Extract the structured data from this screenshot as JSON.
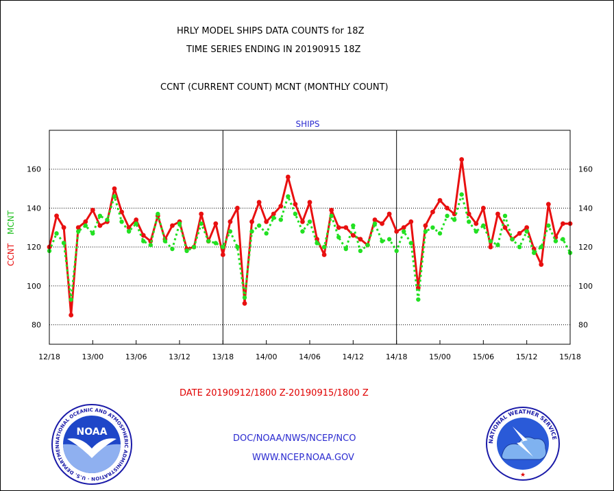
{
  "titles": {
    "line1": "HRLY MODEL SHIPS DATA COUNTS for 18Z",
    "line2": "TIME SERIES ENDING IN 20190915 18Z",
    "line3": "CCNT (CURRENT COUNT) MCNT (MONTHLY COUNT)"
  },
  "footer": {
    "date_range": "DATE 20190912/1800 Z-20190915/1800 Z",
    "org_path": "DOC/NOAA/NWS/NCEP/NCO",
    "website": "WWW.NCEP.NOAA.GOV"
  },
  "logos": {
    "noaa": {
      "label": "NOAA",
      "ring_text": "NATIONAL OCEANIC AND ATMOSPHERIC ADMINISTRATION · U.S. DEPARTMENT OF COMMERCE"
    },
    "nws": {
      "ring_text": "NATIONAL WEATHER SERVICE"
    }
  },
  "colors": {
    "ccnt": "#e81010",
    "mcnt": "#22e022",
    "title": "#000000",
    "subtitle": "#2a2ad0",
    "date": "#e00000"
  },
  "chart_data": {
    "type": "line",
    "title": "SHIPS",
    "ylabel_ccnt": "CCNT",
    "ylabel_mcnt": "MCNT",
    "ylim": [
      70,
      180
    ],
    "yticks": [
      80,
      100,
      120,
      140,
      160
    ],
    "x_ticks": [
      "12/18",
      "13/00",
      "13/06",
      "13/12",
      "13/18",
      "14/00",
      "14/06",
      "14/12",
      "14/18",
      "15/00",
      "15/06",
      "15/12",
      "15/18"
    ],
    "x_hours": [
      0,
      6,
      12,
      18,
      24,
      30,
      36,
      42,
      48,
      54,
      60,
      66,
      72
    ],
    "day_dividers_hours": [
      24,
      48
    ],
    "grid": "horizontal-dotted",
    "series": [
      {
        "name": "CCNT",
        "style": "solid",
        "values": [
          [
            0,
            120
          ],
          [
            1,
            136
          ],
          [
            2,
            130
          ],
          [
            3,
            85
          ],
          [
            4,
            130
          ],
          [
            5,
            133
          ],
          [
            6,
            139
          ],
          [
            7,
            131
          ],
          [
            8,
            133
          ],
          [
            9,
            150
          ],
          [
            10,
            138
          ],
          [
            11,
            130
          ],
          [
            12,
            134
          ],
          [
            13,
            126
          ],
          [
            14,
            123
          ],
          [
            15,
            136
          ],
          [
            16,
            124
          ],
          [
            17,
            131
          ],
          [
            18,
            133
          ],
          [
            19,
            119
          ],
          [
            20,
            120
          ],
          [
            21,
            137
          ],
          [
            22,
            123
          ],
          [
            23,
            132
          ],
          [
            24,
            116
          ],
          [
            25,
            133
          ],
          [
            26,
            140
          ],
          [
            27,
            91
          ],
          [
            28,
            133
          ],
          [
            29,
            143
          ],
          [
            30,
            133
          ],
          [
            31,
            137
          ],
          [
            32,
            141
          ],
          [
            33,
            156
          ],
          [
            34,
            142
          ],
          [
            35,
            133
          ],
          [
            36,
            143
          ],
          [
            37,
            124
          ],
          [
            38,
            116
          ],
          [
            39,
            139
          ],
          [
            40,
            130
          ],
          [
            41,
            130
          ],
          [
            42,
            126
          ],
          [
            43,
            124
          ],
          [
            44,
            121
          ],
          [
            45,
            134
          ],
          [
            46,
            132
          ],
          [
            47,
            137
          ],
          [
            48,
            128
          ],
          [
            49,
            130
          ],
          [
            50,
            133
          ],
          [
            51,
            99
          ],
          [
            52,
            131
          ],
          [
            53,
            138
          ],
          [
            54,
            144
          ],
          [
            55,
            140
          ],
          [
            56,
            137
          ],
          [
            57,
            165
          ],
          [
            58,
            137
          ],
          [
            59,
            132
          ],
          [
            60,
            140
          ],
          [
            61,
            120
          ],
          [
            62,
            137
          ],
          [
            63,
            130
          ],
          [
            64,
            124
          ],
          [
            65,
            127
          ],
          [
            66,
            130
          ],
          [
            67,
            119
          ],
          [
            68,
            111
          ],
          [
            69,
            142
          ],
          [
            70,
            125
          ],
          [
            71,
            132
          ],
          [
            72,
            132
          ]
        ]
      },
      {
        "name": "MCNT",
        "style": "dotted",
        "values": [
          [
            0,
            118
          ],
          [
            1,
            127
          ],
          [
            2,
            122
          ],
          [
            3,
            93
          ],
          [
            4,
            128
          ],
          [
            5,
            131
          ],
          [
            6,
            127
          ],
          [
            7,
            136
          ],
          [
            8,
            134
          ],
          [
            9,
            146
          ],
          [
            10,
            133
          ],
          [
            11,
            128
          ],
          [
            12,
            132
          ],
          [
            13,
            123
          ],
          [
            14,
            121
          ],
          [
            15,
            137
          ],
          [
            16,
            123
          ],
          [
            17,
            119
          ],
          [
            18,
            132
          ],
          [
            19,
            118
          ],
          [
            20,
            120
          ],
          [
            21,
            132
          ],
          [
            22,
            123
          ],
          [
            23,
            122
          ],
          [
            24,
            120
          ],
          [
            25,
            128
          ],
          [
            26,
            120
          ],
          [
            27,
            94
          ],
          [
            28,
            128
          ],
          [
            29,
            131
          ],
          [
            30,
            127
          ],
          [
            31,
            135
          ],
          [
            32,
            134
          ],
          [
            33,
            146
          ],
          [
            34,
            137
          ],
          [
            35,
            128
          ],
          [
            36,
            133
          ],
          [
            37,
            122
          ],
          [
            38,
            120
          ],
          [
            39,
            136
          ],
          [
            40,
            125
          ],
          [
            41,
            119
          ],
          [
            42,
            131
          ],
          [
            43,
            118
          ],
          [
            44,
            121
          ],
          [
            45,
            132
          ],
          [
            46,
            123
          ],
          [
            47,
            124
          ],
          [
            48,
            118
          ],
          [
            49,
            128
          ],
          [
            50,
            122
          ],
          [
            51,
            93
          ],
          [
            52,
            128
          ],
          [
            53,
            130
          ],
          [
            54,
            127
          ],
          [
            55,
            136
          ],
          [
            56,
            134
          ],
          [
            57,
            147
          ],
          [
            58,
            133
          ],
          [
            59,
            128
          ],
          [
            60,
            131
          ],
          [
            61,
            123
          ],
          [
            62,
            121
          ],
          [
            63,
            136
          ],
          [
            64,
            124
          ],
          [
            65,
            120
          ],
          [
            66,
            128
          ],
          [
            67,
            117
          ],
          [
            68,
            120
          ],
          [
            69,
            131
          ],
          [
            70,
            123
          ],
          [
            71,
            124
          ],
          [
            72,
            117
          ]
        ]
      }
    ]
  }
}
